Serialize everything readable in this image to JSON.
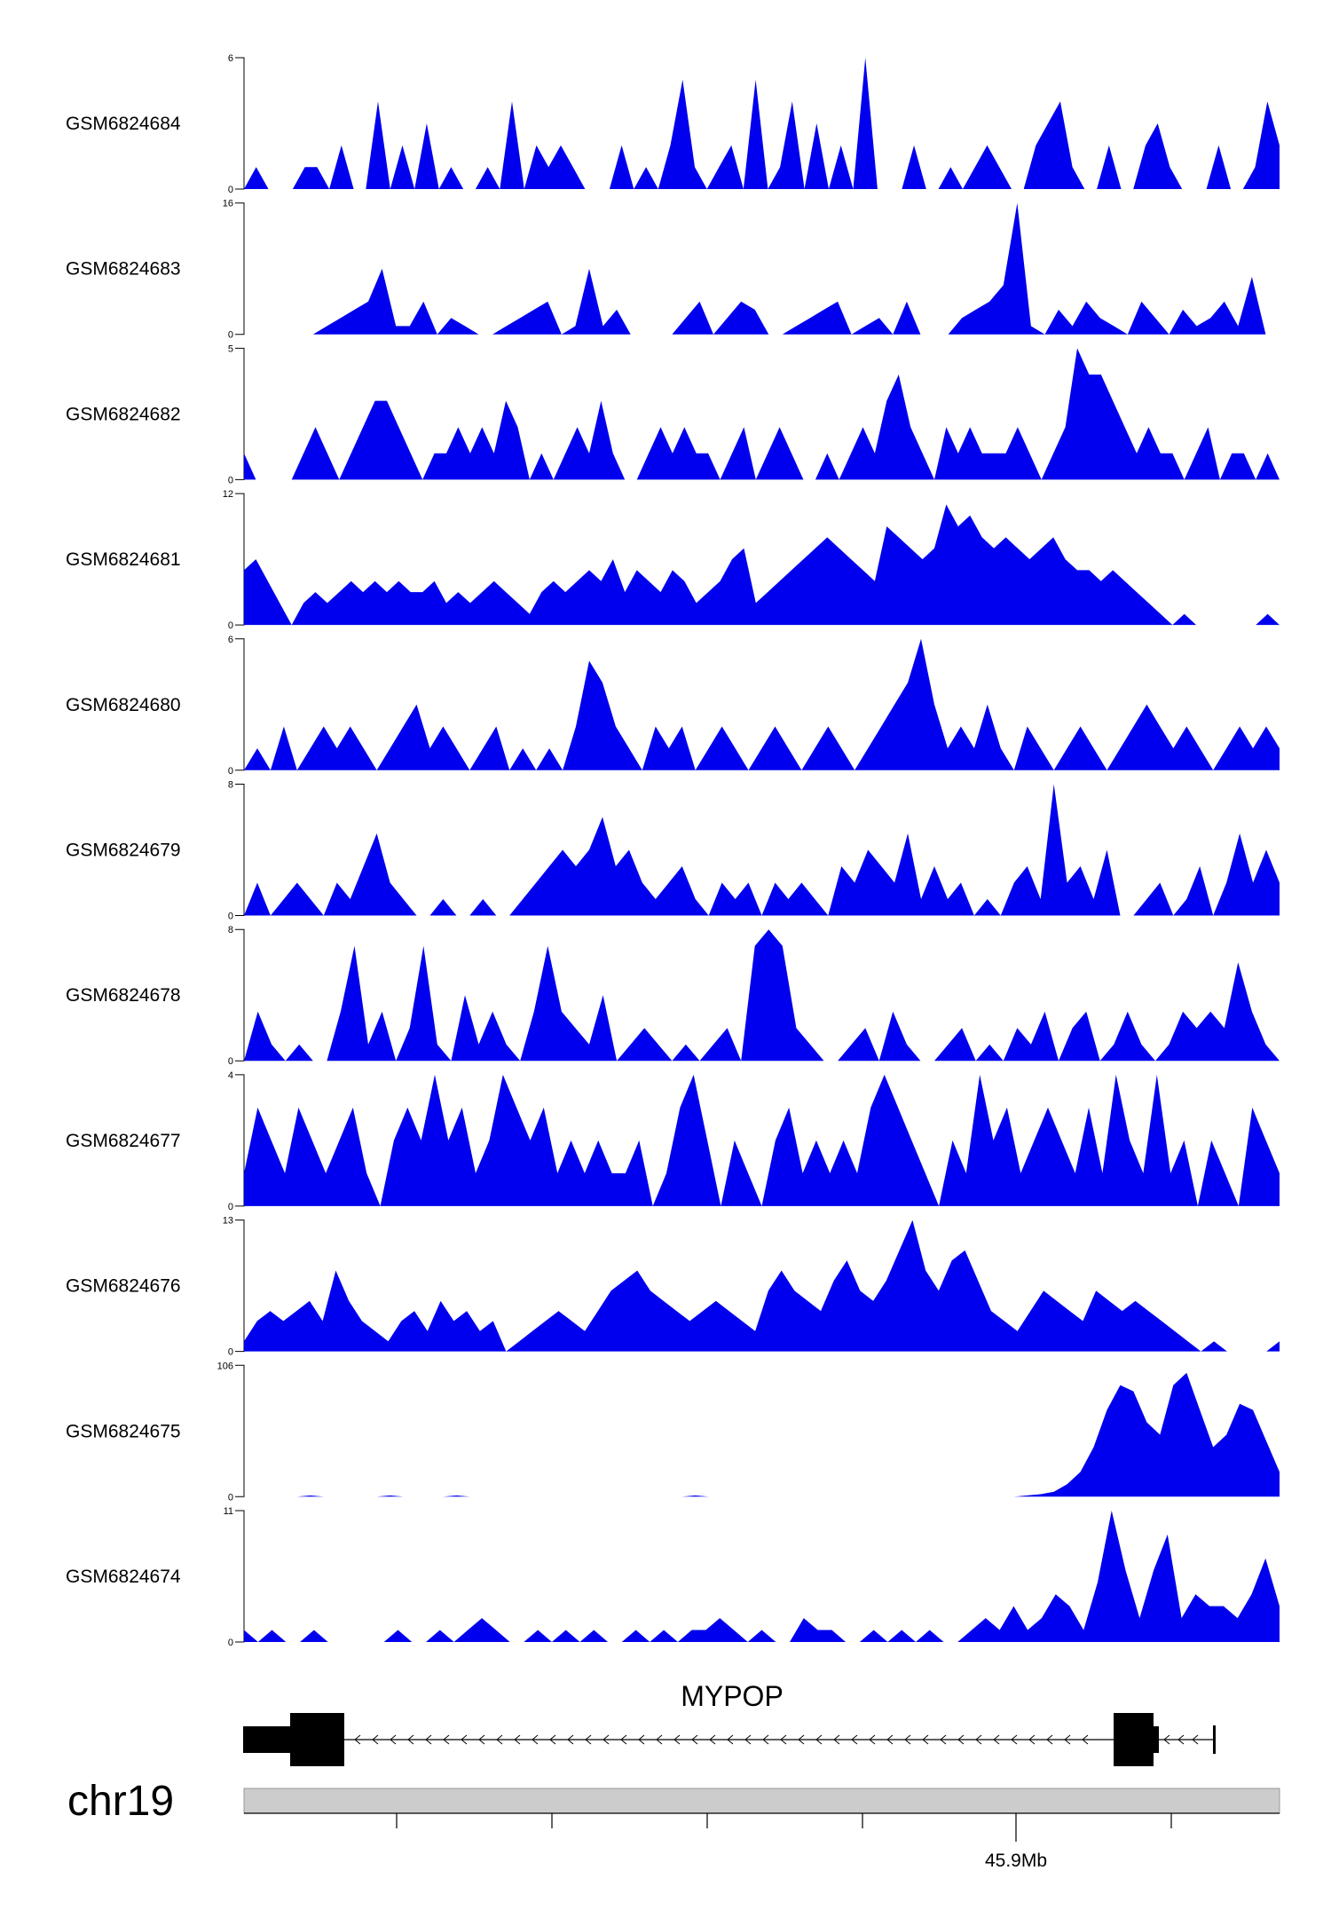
{
  "chart_data": {
    "type": "area",
    "colors": {
      "signal": "#0000ee",
      "axis": "#000000",
      "ideogram": "#cccccc",
      "gene": "#000000"
    },
    "tracks": [
      {
        "name": "GSM6824684",
        "ymax": 6,
        "ymin": 0,
        "values": [
          0,
          1,
          0,
          0,
          0,
          1,
          1,
          0,
          2,
          0,
          0,
          4,
          0,
          2,
          0,
          3,
          0,
          1,
          0,
          0,
          1,
          0,
          4,
          0,
          2,
          1,
          2,
          1,
          0,
          0,
          0,
          2,
          0,
          1,
          0,
          2,
          5,
          1,
          0,
          1,
          2,
          0,
          5,
          0,
          1,
          4,
          0,
          3,
          0,
          2,
          0,
          6,
          0,
          0,
          0,
          2,
          0,
          0,
          1,
          0,
          1,
          2,
          1,
          0,
          0,
          2,
          3,
          4,
          1,
          0,
          0,
          2,
          0,
          0,
          2,
          3,
          1,
          0,
          0,
          0,
          2,
          0,
          0,
          1,
          4,
          2
        ]
      },
      {
        "name": "GSM6824683",
        "ymax": 16,
        "ymin": 0,
        "values": [
          0,
          0,
          0,
          0,
          0,
          0,
          1,
          2,
          3,
          4,
          8,
          1,
          1,
          4,
          0,
          2,
          1,
          0,
          0,
          1,
          2,
          3,
          4,
          0,
          1,
          8,
          1,
          3,
          0,
          0,
          0,
          0,
          2,
          4,
          0,
          2,
          4,
          3,
          0,
          0,
          1,
          2,
          3,
          4,
          0,
          1,
          2,
          0,
          4,
          0,
          0,
          0,
          2,
          3,
          4,
          6,
          16,
          1,
          0,
          3,
          1,
          4,
          2,
          1,
          0,
          4,
          2,
          0,
          3,
          1,
          2,
          4,
          1,
          7,
          0,
          0
        ]
      },
      {
        "name": "GSM6824682",
        "ymax": 5,
        "ymin": 0,
        "values": [
          1,
          0,
          0,
          0,
          0,
          1,
          2,
          1,
          0,
          1,
          2,
          3,
          3,
          2,
          1,
          0,
          1,
          1,
          2,
          1,
          2,
          1,
          3,
          2,
          0,
          1,
          0,
          1,
          2,
          1,
          3,
          1,
          0,
          0,
          1,
          2,
          1,
          2,
          1,
          1,
          0,
          1,
          2,
          0,
          1,
          2,
          1,
          0,
          0,
          1,
          0,
          1,
          2,
          1,
          3,
          4,
          2,
          1,
          0,
          2,
          1,
          2,
          1,
          1,
          1,
          2,
          1,
          0,
          1,
          2,
          5,
          4,
          4,
          3,
          2,
          1,
          2,
          1,
          1,
          0,
          1,
          2,
          0,
          1,
          1,
          0,
          1,
          0
        ]
      },
      {
        "name": "GSM6824681",
        "ymax": 12,
        "ymin": 0,
        "values": [
          5,
          6,
          4,
          2,
          0,
          2,
          3,
          2,
          3,
          4,
          3,
          4,
          3,
          4,
          3,
          3,
          4,
          2,
          3,
          2,
          3,
          4,
          3,
          2,
          1,
          3,
          4,
          3,
          4,
          5,
          4,
          6,
          3,
          5,
          4,
          3,
          5,
          4,
          2,
          3,
          4,
          6,
          7,
          2,
          3,
          4,
          5,
          6,
          7,
          8,
          7,
          6,
          5,
          4,
          9,
          8,
          7,
          6,
          7,
          11,
          9,
          10,
          8,
          7,
          8,
          7,
          6,
          7,
          8,
          6,
          5,
          5,
          4,
          5,
          4,
          3,
          2,
          1,
          0,
          1,
          0,
          0,
          0,
          0,
          0,
          0,
          1,
          0
        ]
      },
      {
        "name": "GSM6824680",
        "ymax": 6,
        "ymin": 0,
        "values": [
          0,
          1,
          0,
          2,
          0,
          1,
          2,
          1,
          2,
          1,
          0,
          1,
          2,
          3,
          1,
          2,
          1,
          0,
          1,
          2,
          0,
          1,
          0,
          1,
          0,
          2,
          5,
          4,
          2,
          1,
          0,
          2,
          1,
          2,
          0,
          1,
          2,
          1,
          0,
          1,
          2,
          1,
          0,
          1,
          2,
          1,
          0,
          1,
          2,
          3,
          4,
          6,
          3,
          1,
          2,
          1,
          3,
          1,
          0,
          2,
          1,
          0,
          1,
          2,
          1,
          0,
          1,
          2,
          3,
          2,
          1,
          2,
          1,
          0,
          1,
          2,
          1,
          2,
          1
        ]
      },
      {
        "name": "GSM6824679",
        "ymax": 8,
        "ymin": 0,
        "values": [
          0,
          2,
          0,
          1,
          2,
          1,
          0,
          2,
          1,
          3,
          5,
          2,
          1,
          0,
          0,
          1,
          0,
          0,
          1,
          0,
          0,
          1,
          2,
          3,
          4,
          3,
          4,
          6,
          3,
          4,
          2,
          1,
          2,
          3,
          1,
          0,
          2,
          1,
          2,
          0,
          2,
          1,
          2,
          1,
          0,
          3,
          2,
          4,
          3,
          2,
          5,
          1,
          3,
          1,
          2,
          0,
          1,
          0,
          2,
          3,
          1,
          8,
          2,
          3,
          1,
          4,
          0,
          0,
          1,
          2,
          0,
          1,
          3,
          0,
          2,
          5,
          2,
          4,
          2
        ]
      },
      {
        "name": "GSM6824678",
        "ymax": 8,
        "ymin": 0,
        "values": [
          0,
          3,
          1,
          0,
          1,
          0,
          0,
          3,
          7,
          1,
          3,
          0,
          2,
          7,
          1,
          0,
          4,
          1,
          3,
          1,
          0,
          3,
          7,
          3,
          2,
          1,
          4,
          0,
          1,
          2,
          1,
          0,
          1,
          0,
          1,
          2,
          0,
          7,
          8,
          7,
          2,
          1,
          0,
          0,
          1,
          2,
          0,
          3,
          1,
          0,
          0,
          1,
          2,
          0,
          1,
          0,
          2,
          1,
          3,
          0,
          2,
          3,
          0,
          1,
          3,
          1,
          0,
          1,
          3,
          2,
          3,
          2,
          6,
          3,
          1,
          0
        ]
      },
      {
        "name": "GSM6824677",
        "ymax": 4,
        "ymin": 0,
        "values": [
          1,
          3,
          2,
          1,
          3,
          2,
          1,
          2,
          3,
          1,
          0,
          2,
          3,
          2,
          4,
          2,
          3,
          1,
          2,
          4,
          3,
          2,
          3,
          1,
          2,
          1,
          2,
          1,
          1,
          2,
          0,
          1,
          3,
          4,
          2,
          0,
          2,
          1,
          0,
          2,
          3,
          1,
          2,
          1,
          2,
          1,
          3,
          4,
          3,
          2,
          1,
          0,
          2,
          1,
          4,
          2,
          3,
          1,
          2,
          3,
          2,
          1,
          3,
          1,
          4,
          2,
          1,
          4,
          1,
          2,
          0,
          2,
          1,
          0,
          3,
          2,
          1
        ]
      },
      {
        "name": "GSM6824676",
        "ymax": 13,
        "ymin": 0,
        "values": [
          1,
          3,
          4,
          3,
          4,
          5,
          3,
          8,
          5,
          3,
          2,
          1,
          3,
          4,
          2,
          5,
          3,
          4,
          2,
          3,
          0,
          1,
          2,
          3,
          4,
          3,
          2,
          4,
          6,
          7,
          8,
          6,
          5,
          4,
          3,
          4,
          5,
          4,
          3,
          2,
          6,
          8,
          6,
          5,
          4,
          7,
          9,
          6,
          5,
          7,
          10,
          13,
          8,
          6,
          9,
          10,
          7,
          4,
          3,
          2,
          4,
          6,
          5,
          4,
          3,
          6,
          5,
          4,
          5,
          4,
          3,
          2,
          1,
          0,
          1,
          0,
          0,
          0,
          0,
          1
        ]
      },
      {
        "name": "GSM6824675",
        "ymax": 106,
        "ymin": 0,
        "values": [
          0,
          0,
          0,
          0,
          0,
          1,
          0,
          0,
          0,
          0,
          0,
          1,
          0,
          0,
          0,
          0,
          1,
          0,
          0,
          0,
          0,
          0,
          0,
          0,
          0,
          0,
          0,
          0,
          0,
          0,
          0,
          0,
          0,
          0,
          1,
          0,
          0,
          0,
          0,
          0,
          0,
          0,
          0,
          0,
          0,
          0,
          0,
          0,
          0,
          0,
          0,
          0,
          0,
          0,
          0,
          0,
          0,
          0,
          0,
          1,
          2,
          4,
          10,
          20,
          40,
          70,
          90,
          85,
          60,
          50,
          90,
          100,
          70,
          40,
          50,
          75,
          70,
          45,
          20
        ]
      },
      {
        "name": "GSM6824674",
        "ymax": 11,
        "ymin": 0,
        "values": [
          1,
          0,
          1,
          0,
          0,
          1,
          0,
          0,
          0,
          0,
          0,
          1,
          0,
          0,
          1,
          0,
          1,
          2,
          1,
          0,
          0,
          1,
          0,
          1,
          0,
          1,
          0,
          0,
          1,
          0,
          1,
          0,
          1,
          1,
          2,
          1,
          0,
          1,
          0,
          0,
          2,
          1,
          1,
          0,
          0,
          1,
          0,
          1,
          0,
          1,
          0,
          0,
          1,
          2,
          1,
          3,
          1,
          2,
          4,
          3,
          1,
          5,
          11,
          6,
          2,
          6,
          9,
          2,
          4,
          3,
          3,
          2,
          4,
          7,
          3
        ]
      }
    ],
    "gene": {
      "name": "MYPOP",
      "strand": "-",
      "chrom": "chr19"
    },
    "x_axis": {
      "tick_label": "45.9Mb",
      "ticks": 7
    }
  }
}
